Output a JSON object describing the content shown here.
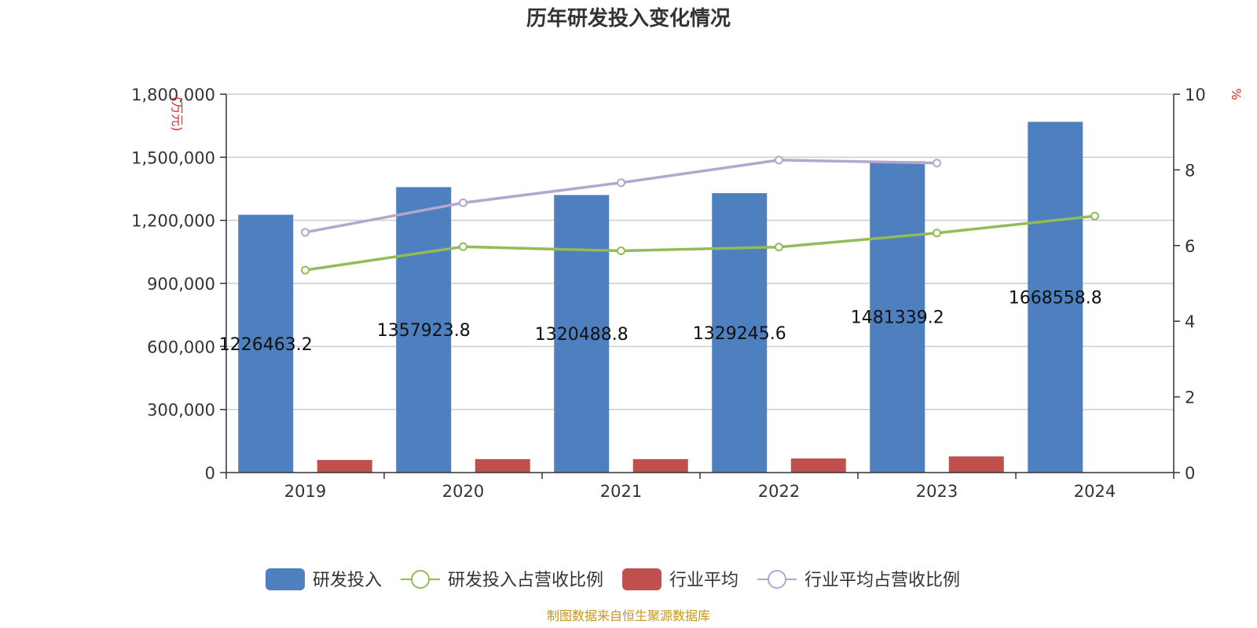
{
  "chart_data": {
    "type": "bar",
    "title": "历年研发投入变化情况",
    "categories": [
      "2019",
      "2020",
      "2021",
      "2022",
      "2023",
      "2024"
    ],
    "y_left": {
      "unit": "(万元)",
      "ylim": [
        0,
        1800000
      ],
      "ticks": [
        0,
        300000,
        600000,
        900000,
        1200000,
        1500000,
        1800000
      ],
      "tick_labels": [
        "0",
        "300,000",
        "600,000",
        "900,000",
        "1,200,000",
        "1,500,000",
        "1,800,000"
      ]
    },
    "y_right": {
      "unit": "%",
      "ylim": [
        0,
        10
      ],
      "ticks": [
        0,
        2,
        4,
        6,
        8,
        10
      ],
      "tick_labels": [
        "0",
        "2",
        "4",
        "6",
        "8",
        "10"
      ]
    },
    "grid": true,
    "legend_position": "bottom",
    "series": [
      {
        "name": "研发投入",
        "kind": "bar",
        "axis": "left",
        "color": "#4e7fbf",
        "values": [
          1226463.2,
          1357923.8,
          1320488.8,
          1329245.6,
          1481339.2,
          1668558.8
        ],
        "labels": [
          "1226463.2",
          "1357923.8",
          "1320488.8",
          "1329245.6",
          "1481339.2",
          "1668558.8"
        ]
      },
      {
        "name": "研发投入占营收比例",
        "kind": "line",
        "axis": "right",
        "color": "#93bb58",
        "values": [
          5.35,
          5.97,
          5.86,
          5.96,
          6.33,
          6.78
        ]
      },
      {
        "name": "行业平均",
        "kind": "bar",
        "axis": "left",
        "color": "#c0504d",
        "values": [
          60000,
          64000,
          64000,
          67000,
          77000,
          null
        ]
      },
      {
        "name": "行业平均占营收比例",
        "kind": "line",
        "axis": "right",
        "color": "#b3a6cf",
        "values": [
          6.35,
          7.13,
          7.66,
          8.26,
          8.18,
          null
        ]
      }
    ],
    "source": "制图数据来自恒生聚源数据库"
  }
}
